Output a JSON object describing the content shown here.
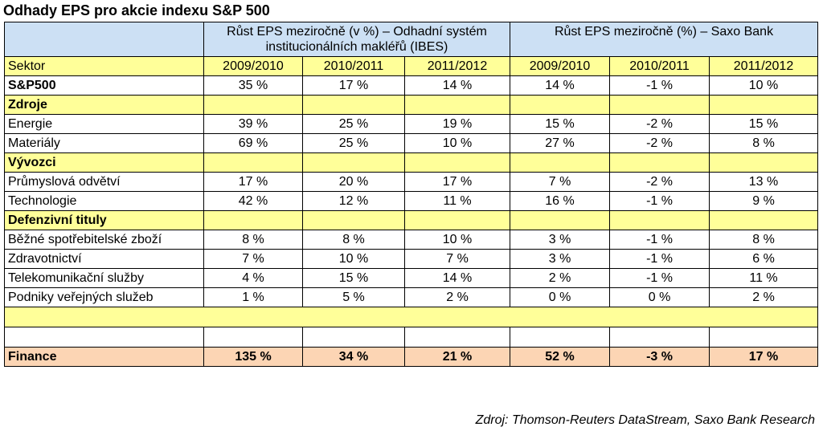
{
  "title": "Odhady EPS pro akcie indexu S&P 500",
  "header": {
    "group_ibes": "Růst EPS meziročně (v %) – Odhadní systém institucionálních makléřů (IBES)",
    "group_saxo": "Růst EPS meziročně (%) – Saxo Bank",
    "sector_label": "Sektor",
    "years": [
      "2009/2010",
      "2010/2011",
      "2011/2012",
      "2009/2010",
      "2010/2011",
      "2011/2012"
    ]
  },
  "rows": {
    "sp500": {
      "label": "S&P500",
      "values": [
        "35 %",
        "17 %",
        "14 %",
        "14 %",
        "-1 %",
        "10 %"
      ]
    },
    "sec_zdroje": "Zdroje",
    "energie": {
      "label": "Energie",
      "values": [
        "39 %",
        "25 %",
        "19 %",
        "15 %",
        "-2 %",
        "15 %"
      ]
    },
    "materialy": {
      "label": "Materiály",
      "values": [
        "69 %",
        "25 %",
        "10 %",
        "27 %",
        "-2 %",
        "8 %"
      ]
    },
    "sec_vyvozci": "Vývozci",
    "prumysl": {
      "label": "Průmyslová odvětví",
      "values": [
        "17 %",
        "20 %",
        "17 %",
        "7 %",
        "-2 %",
        "13 %"
      ]
    },
    "technologie": {
      "label": "Technologie",
      "values": [
        "42 %",
        "12 %",
        "11 %",
        "16 %",
        "-1 %",
        "9 %"
      ]
    },
    "sec_defenzivni": "Defenzivní tituly",
    "bezne": {
      "label": "Běžné spotřebitelské zboží",
      "values": [
        "8 %",
        "8 %",
        "10 %",
        "3 %",
        "-1 %",
        "8 %"
      ]
    },
    "zdravotnictvi": {
      "label": "Zdravotnictví",
      "values": [
        "7 %",
        "10 %",
        "7 %",
        "3 %",
        "-1 %",
        "6 %"
      ]
    },
    "telekom": {
      "label": "Telekomunikační služby",
      "values": [
        "4 %",
        "15 %",
        "14 %",
        "2 %",
        "-1 %",
        "11 %"
      ]
    },
    "podniky": {
      "label": "Podniky veřejných služeb",
      "values": [
        "1 %",
        "5 %",
        "2 %",
        "0 %",
        "0 %",
        "2 %"
      ]
    },
    "finance": {
      "label": "Finance",
      "values": [
        "135 %",
        "34 %",
        "21 %",
        "52 %",
        "-3 %",
        "17 %"
      ]
    }
  },
  "source": "Zdroj: Thomson-Reuters DataStream, Saxo Bank Research"
}
